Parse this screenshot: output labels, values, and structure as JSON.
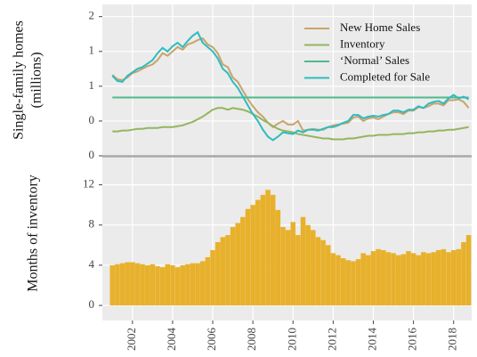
{
  "chart_data": [
    {
      "type": "line",
      "ylabel": "Single-family homes",
      "ylabel2": "(millions)",
      "x": [
        2001,
        2001.25,
        2001.5,
        2001.75,
        2002,
        2002.25,
        2002.5,
        2002.75,
        2003,
        2003.25,
        2003.5,
        2003.75,
        2004,
        2004.25,
        2004.5,
        2004.75,
        2005,
        2005.25,
        2005.5,
        2005.75,
        2006,
        2006.25,
        2006.5,
        2006.75,
        2007,
        2007.25,
        2007.5,
        2007.75,
        2008,
        2008.25,
        2008.5,
        2008.75,
        2009,
        2009.25,
        2009.5,
        2009.75,
        2010,
        2010.25,
        2010.5,
        2010.75,
        2011,
        2011.25,
        2011.5,
        2011.75,
        2012,
        2012.25,
        2012.5,
        2012.75,
        2013,
        2013.25,
        2013.5,
        2013.75,
        2014,
        2014.25,
        2014.5,
        2014.75,
        2015,
        2015.25,
        2015.5,
        2015.75,
        2016,
        2016.25,
        2016.5,
        2016.75,
        2017,
        2017.25,
        2017.5,
        2017.75,
        2018,
        2018.25,
        2018.5,
        2018.75
      ],
      "series": [
        {
          "name": "New Home Sales",
          "color": "#c9a36a",
          "values": [
            0.93,
            0.88,
            0.87,
            0.9,
            0.95,
            0.97,
            1.0,
            1.03,
            1.05,
            1.1,
            1.18,
            1.15,
            1.2,
            1.25,
            1.22,
            1.28,
            1.3,
            1.33,
            1.35,
            1.28,
            1.25,
            1.18,
            1.05,
            1.02,
            0.9,
            0.85,
            0.75,
            0.65,
            0.57,
            0.5,
            0.45,
            0.38,
            0.33,
            0.37,
            0.4,
            0.36,
            0.36,
            0.4,
            0.29,
            0.3,
            0.31,
            0.3,
            0.3,
            0.33,
            0.35,
            0.36,
            0.37,
            0.38,
            0.44,
            0.45,
            0.4,
            0.43,
            0.44,
            0.42,
            0.45,
            0.48,
            0.5,
            0.5,
            0.48,
            0.52,
            0.52,
            0.56,
            0.55,
            0.57,
            0.6,
            0.6,
            0.58,
            0.64,
            0.64,
            0.65,
            0.62,
            0.55
          ]
        },
        {
          "name": "Inventory",
          "color": "#95b55f",
          "values": [
            0.28,
            0.28,
            0.29,
            0.29,
            0.3,
            0.31,
            0.31,
            0.32,
            0.32,
            0.32,
            0.33,
            0.33,
            0.33,
            0.34,
            0.35,
            0.37,
            0.39,
            0.42,
            0.45,
            0.49,
            0.53,
            0.55,
            0.55,
            0.53,
            0.55,
            0.54,
            0.53,
            0.51,
            0.48,
            0.45,
            0.41,
            0.38,
            0.34,
            0.31,
            0.29,
            0.28,
            0.27,
            0.25,
            0.24,
            0.23,
            0.22,
            0.21,
            0.2,
            0.2,
            0.19,
            0.19,
            0.19,
            0.2,
            0.2,
            0.21,
            0.22,
            0.23,
            0.23,
            0.24,
            0.24,
            0.24,
            0.25,
            0.25,
            0.25,
            0.26,
            0.26,
            0.27,
            0.27,
            0.28,
            0.28,
            0.29,
            0.29,
            0.3,
            0.3,
            0.31,
            0.32,
            0.33
          ]
        },
        {
          "name": "‘Normal’ Sales",
          "color": "#4fb98e",
          "x": [
            2001,
            2018.75
          ],
          "values": [
            0.67,
            0.67
          ]
        },
        {
          "name": "Completed for Sale",
          "color": "#2cbcbf",
          "values": [
            0.92,
            0.86,
            0.85,
            0.92,
            0.96,
            1.0,
            1.02,
            1.06,
            1.1,
            1.18,
            1.24,
            1.2,
            1.26,
            1.3,
            1.25,
            1.32,
            1.38,
            1.42,
            1.3,
            1.25,
            1.2,
            1.12,
            1.0,
            0.95,
            0.85,
            0.78,
            0.68,
            0.58,
            0.48,
            0.4,
            0.3,
            0.22,
            0.18,
            0.22,
            0.27,
            0.26,
            0.25,
            0.29,
            0.27,
            0.3,
            0.3,
            0.29,
            0.31,
            0.33,
            0.33,
            0.35,
            0.38,
            0.4,
            0.47,
            0.47,
            0.43,
            0.45,
            0.46,
            0.45,
            0.47,
            0.48,
            0.52,
            0.52,
            0.5,
            0.53,
            0.53,
            0.57,
            0.55,
            0.6,
            0.62,
            0.63,
            0.6,
            0.66,
            0.7,
            0.66,
            0.68,
            0.65
          ]
        }
      ],
      "xlim": [
        2000.5,
        2018.9
      ],
      "ylim": [
        0,
        1.74
      ],
      "yticks": [
        {
          "value": 1.6,
          "label": "2"
        },
        {
          "value": 1.2,
          "label": "1"
        },
        {
          "value": 0.8,
          "label": "1"
        },
        {
          "value": 0.4,
          "label": "0"
        },
        {
          "value": 0.0,
          "label": "0"
        }
      ],
      "grid": true,
      "legend": "upper right"
    },
    {
      "type": "bar",
      "ylabel": "Months of inventory",
      "color": "#e8b12c",
      "x": [
        2001,
        2001.25,
        2001.5,
        2001.75,
        2002,
        2002.25,
        2002.5,
        2002.75,
        2003,
        2003.25,
        2003.5,
        2003.75,
        2004,
        2004.25,
        2004.5,
        2004.75,
        2005,
        2005.25,
        2005.5,
        2005.75,
        2006,
        2006.25,
        2006.5,
        2006.75,
        2007,
        2007.25,
        2007.5,
        2007.75,
        2008,
        2008.25,
        2008.5,
        2008.75,
        2009,
        2009.25,
        2009.5,
        2009.75,
        2010,
        2010.25,
        2010.5,
        2010.75,
        2011,
        2011.25,
        2011.5,
        2011.75,
        2012,
        2012.25,
        2012.5,
        2012.75,
        2013,
        2013.25,
        2013.5,
        2013.75,
        2014,
        2014.25,
        2014.5,
        2014.75,
        2015,
        2015.25,
        2015.5,
        2015.75,
        2016,
        2016.25,
        2016.5,
        2016.75,
        2017,
        2017.25,
        2017.5,
        2017.75,
        2018,
        2018.25,
        2018.5,
        2018.75
      ],
      "values": [
        4.0,
        4.1,
        4.2,
        4.3,
        4.3,
        4.2,
        4.1,
        4.0,
        4.1,
        3.9,
        3.8,
        4.1,
        4.0,
        3.8,
        4.0,
        4.1,
        4.2,
        4.2,
        4.4,
        4.8,
        5.5,
        6.3,
        6.8,
        7.0,
        7.8,
        8.2,
        8.8,
        9.6,
        10.0,
        10.5,
        11.0,
        11.5,
        11.0,
        9.5,
        7.8,
        7.5,
        8.3,
        7.0,
        8.8,
        8.0,
        7.5,
        6.8,
        6.5,
        6.0,
        5.2,
        5.0,
        4.7,
        4.5,
        4.4,
        4.6,
        5.2,
        5.0,
        5.4,
        5.6,
        5.5,
        5.3,
        5.2,
        5.0,
        5.1,
        5.4,
        5.2,
        5.0,
        5.3,
        5.2,
        5.3,
        5.5,
        5.6,
        5.3,
        5.5,
        5.6,
        6.3,
        7.0
      ],
      "xlim": [
        2000.5,
        2018.9
      ],
      "xticks": [
        2002,
        2004,
        2006,
        2008,
        2010,
        2012,
        2014,
        2016,
        2018
      ],
      "ylim": [
        -1.5,
        14.8
      ],
      "yticks": [
        0,
        4,
        8,
        12
      ],
      "grid": true
    }
  ]
}
